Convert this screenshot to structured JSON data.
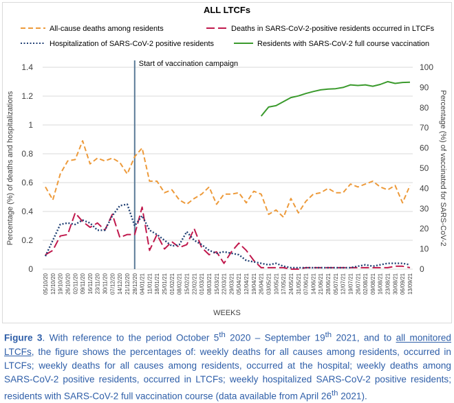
{
  "chart_data": {
    "type": "line",
    "title": "ALL LTCFs",
    "xlabel": "WEEKS",
    "ylabel_left": "Percentage (%) of deaths and hospitalizations",
    "ylabel_right": "Percentage (%) of vaccinated for SARS-CoV-2",
    "ylim_left": [
      0,
      1.4
    ],
    "ylim_right": [
      0,
      100
    ],
    "yticks_left": [
      "0",
      "0.2",
      "0.4",
      "0.6",
      "0.8",
      "1",
      "1.2",
      "1.4"
    ],
    "yticks_right": [
      "0",
      "10",
      "20",
      "30",
      "40",
      "50",
      "60",
      "70",
      "80",
      "90",
      "100"
    ],
    "grid": true,
    "legend_position": "top",
    "x_labels": [
      "05/10/20",
      "12/10/20",
      "19/10/20",
      "26/10/20",
      "02/11/20",
      "09/11/20",
      "16/11/20",
      "23/11/20",
      "30/11/20",
      "07/12/20",
      "14/12/20",
      "21/12/20",
      "28/12/20",
      "04/01/21",
      "11/01/21",
      "18/01/21",
      "25/01/21",
      "01/02/21",
      "08/02/21",
      "15/02/21",
      "22/02/21",
      "01/03/21",
      "08/03/21",
      "15/03/21",
      "22/03/21",
      "29/03/21",
      "05/04/21",
      "12/04/21",
      "19/04/21",
      "26/04/21",
      "03/05/21",
      "10/05/21",
      "17/05/21",
      "24/05/21",
      "31/05/21",
      "07/06/21",
      "14/06/21",
      "21/06/21",
      "28/06/21",
      "05/07/21",
      "12/07/21",
      "19/07/21",
      "26/07/21",
      "02/08/21",
      "09/08/21",
      "16/08/21",
      "23/08/21",
      "30/08/21",
      "06/09/21",
      "13/09/21"
    ],
    "annotation": {
      "text": "Start of vaccination campaign",
      "x_label": "28/12/20"
    },
    "series": [
      {
        "name": "All-cause deaths among residents",
        "axis": "left",
        "style": "dashed",
        "color": "#ed9a3a",
        "values": [
          0.57,
          0.48,
          0.66,
          0.75,
          0.76,
          0.89,
          0.73,
          0.77,
          0.75,
          0.77,
          0.74,
          0.66,
          0.78,
          0.84,
          0.61,
          0.61,
          0.53,
          0.55,
          0.48,
          0.45,
          0.49,
          0.52,
          0.57,
          0.45,
          0.52,
          0.52,
          0.53,
          0.46,
          0.54,
          0.52,
          0.38,
          0.41,
          0.36,
          0.49,
          0.39,
          0.47,
          0.52,
          0.53,
          0.56,
          0.53,
          0.53,
          0.59,
          0.57,
          0.59,
          0.61,
          0.57,
          0.55,
          0.58,
          0.46,
          0.58
        ]
      },
      {
        "name": "Deaths in SARS-CoV-2-positive residents occurred in LTCFs",
        "axis": "left",
        "style": "longdash",
        "color": "#c0184c",
        "values": [
          0.1,
          0.13,
          0.23,
          0.24,
          0.39,
          0.33,
          0.29,
          0.32,
          0.27,
          0.38,
          0.22,
          0.24,
          0.24,
          0.43,
          0.13,
          0.24,
          0.14,
          0.19,
          0.15,
          0.17,
          0.28,
          0.15,
          0.1,
          0.12,
          0.04,
          0.12,
          0.18,
          0.13,
          0.06,
          0.01,
          0.01,
          0.01,
          0.01,
          0.0,
          0.0,
          0.01,
          0.01,
          0.01,
          0.01,
          0.01,
          0.01,
          0.01,
          0.01,
          0.01,
          0.01,
          0.01,
          0.01,
          0.02,
          0.02,
          0.01
        ]
      },
      {
        "name": "Hospitalization of SARS-CoV-2 positive residents",
        "axis": "left",
        "style": "dotted",
        "color": "#1f3f73",
        "values": [
          0.09,
          0.2,
          0.31,
          0.32,
          0.31,
          0.34,
          0.32,
          0.27,
          0.27,
          0.37,
          0.44,
          0.45,
          0.3,
          0.37,
          0.27,
          0.24,
          0.2,
          0.16,
          0.17,
          0.26,
          0.2,
          0.17,
          0.13,
          0.11,
          0.12,
          0.11,
          0.1,
          0.06,
          0.05,
          0.04,
          0.03,
          0.04,
          0.02,
          0.01,
          0.01,
          0.01,
          0.01,
          0.01,
          0.01,
          0.01,
          0.01,
          0.01,
          0.02,
          0.03,
          0.02,
          0.03,
          0.04,
          0.04,
          0.04,
          0.03
        ]
      },
      {
        "name": "Residents with SARS-CoV-2 full course vaccination",
        "axis": "right",
        "style": "solid",
        "color": "#3a9a2c",
        "start_label": "26/04/21",
        "values": [
          75.8,
          80.3,
          81.0,
          83.0,
          85.0,
          85.8,
          87.0,
          88.0,
          88.8,
          89.2,
          89.4,
          90.0,
          91.3,
          91.0,
          91.3,
          90.6,
          91.5,
          92.9,
          92.0,
          92.5,
          92.6
        ]
      }
    ]
  },
  "caption": {
    "figure_label": "Figure 3",
    "intro": ". With reference to the period October 5",
    "sup_th_1": "th",
    "mid1": " 2020 – September 19",
    "sup_th_2": "th",
    "mid2": " 2021, and to ",
    "underlined": "all monitored LTCFs",
    "rest1": ", the figure shows the percentages of: weekly deaths for all causes among residents, occurred in LTCFs; weekly deaths for all causes among residents, occurred at the hospital; weekly deaths among SARS-CoV-2 positive residents, occurred in LTCFs; weekly hospitalized SARS-CoV-2 positive residents; residents with SARS-CoV-2 full vaccination course (data available from April 26",
    "sup_th_3": "th",
    "rest2": " 2021)."
  },
  "colors": {
    "grid": "#d9d9d9",
    "vline": "#5a7a96",
    "caption_text": "#2e5ea8",
    "axis_text": "#404040"
  }
}
